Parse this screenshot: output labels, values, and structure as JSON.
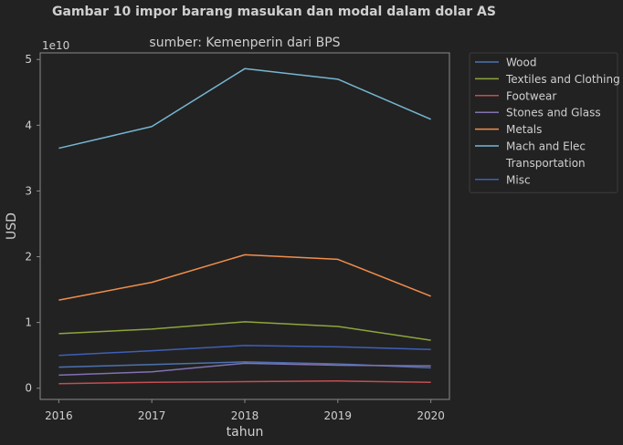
{
  "suptitle": "Gambar 10 impor barang masukan dan modal dalam dolar AS",
  "chart_data": {
    "type": "line",
    "title": "sumber: Kemenperin dari BPS",
    "xlabel": "tahun",
    "ylabel": "USD",
    "offset_label": "1e10",
    "x": [
      2016,
      2017,
      2018,
      2019,
      2020
    ],
    "x_ticks": [
      "2016",
      "2017",
      "2018",
      "2019",
      "2020"
    ],
    "y_ticks": [
      0,
      1,
      2,
      3,
      4,
      5
    ],
    "y_tick_labels": [
      "0",
      "1",
      "2",
      "3",
      "4",
      "5"
    ],
    "xlim": [
      2015.8,
      2020.2
    ],
    "ylim": [
      -0.17,
      5.1
    ],
    "y_scale_factor": 10000000000,
    "grid": false,
    "legend_position": "outside upper right",
    "series": [
      {
        "name": "Wood",
        "color": "#4c72b0",
        "values": [
          0.32,
          0.36,
          0.4,
          0.37,
          0.31
        ]
      },
      {
        "name": "Textiles and Clothing",
        "color": "#8da63c",
        "values": [
          0.83,
          0.9,
          1.01,
          0.94,
          0.73
        ]
      },
      {
        "name": "Footwear",
        "color": "#c44e52",
        "values": [
          0.07,
          0.09,
          0.1,
          0.11,
          0.09
        ]
      },
      {
        "name": "Stones and Glass",
        "color": "#8172b2",
        "values": [
          0.2,
          0.25,
          0.38,
          0.35,
          0.34
        ]
      },
      {
        "name": "Metals",
        "color": "#f28e4c",
        "values": [
          1.34,
          1.61,
          2.03,
          1.96,
          1.4
        ]
      },
      {
        "name": "Mach and Elec",
        "color": "#76b7d2",
        "values": [
          3.65,
          3.98,
          4.86,
          4.7,
          4.09
        ]
      },
      {
        "name": "Transportation",
        "color": "#222222",
        "values": [
          0.0,
          0.0,
          0.0,
          0.0,
          0.0
        ]
      },
      {
        "name": "Misc",
        "color": "#3f5fb8",
        "values": [
          0.5,
          0.57,
          0.65,
          0.63,
          0.59
        ]
      }
    ]
  },
  "colors": {
    "background": "#222222",
    "axes_edge": "#8a8a8a",
    "text": "#cfcfcf",
    "legend_edge": "#3c3c3c"
  }
}
